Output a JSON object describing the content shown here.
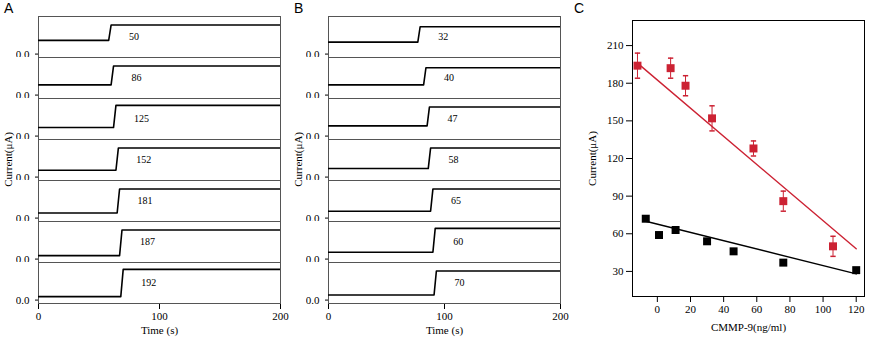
{
  "chart_data": [
    {
      "type": "line",
      "title": "A",
      "xlabel": "Time (s)",
      "ylabel": "Current(μA)",
      "xlim": [
        0,
        200
      ],
      "xticks": [
        0,
        100,
        200
      ],
      "ylim": [
        -0.1,
        1.1
      ],
      "yticks": [
        0
      ],
      "series": [
        {
          "name": "50",
          "color": "#000000",
          "x": [
            0,
            58,
            60,
            200
          ],
          "values": [
            0.4,
            0.4,
            0.85,
            0.85
          ]
        },
        {
          "name": "86",
          "color": "#000000",
          "x": [
            0,
            60,
            62,
            200
          ],
          "values": [
            0.3,
            0.3,
            0.85,
            0.85
          ]
        },
        {
          "name": "125",
          "color": "#000000",
          "x": [
            0,
            62,
            64,
            200
          ],
          "values": [
            0.25,
            0.25,
            0.9,
            0.9
          ]
        },
        {
          "name": "152",
          "color": "#000000",
          "x": [
            0,
            64,
            66,
            200
          ],
          "values": [
            0.2,
            0.2,
            0.85,
            0.85
          ]
        },
        {
          "name": "181",
          "color": "#000000",
          "x": [
            0,
            65,
            67,
            200
          ],
          "values": [
            0.15,
            0.15,
            0.85,
            0.85
          ]
        },
        {
          "name": "187",
          "color": "#000000",
          "x": [
            0,
            67,
            69,
            200
          ],
          "values": [
            0.1,
            0.1,
            0.85,
            0.85
          ]
        },
        {
          "name": "192",
          "color": "#000000",
          "x": [
            0,
            68,
            70,
            200
          ],
          "values": [
            0.1,
            0.1,
            0.9,
            0.9
          ]
        }
      ]
    },
    {
      "type": "line",
      "title": "B",
      "xlabel": "Time (s)",
      "ylabel": "Current(μA)",
      "xlim": [
        0,
        200
      ],
      "xticks": [
        0,
        100,
        200
      ],
      "ylim": [
        -0.1,
        1.1
      ],
      "yticks": [
        0
      ],
      "series": [
        {
          "name": "32",
          "color": "#000000",
          "x": [
            0,
            77,
            79,
            200
          ],
          "values": [
            0.35,
            0.35,
            0.8,
            0.8
          ]
        },
        {
          "name": "40",
          "color": "#000000",
          "x": [
            0,
            82,
            84,
            200
          ],
          "values": [
            0.3,
            0.3,
            0.8,
            0.8
          ]
        },
        {
          "name": "47",
          "color": "#000000",
          "x": [
            0,
            85,
            87,
            200
          ],
          "values": [
            0.3,
            0.3,
            0.85,
            0.85
          ]
        },
        {
          "name": "58",
          "color": "#000000",
          "x": [
            0,
            86,
            88,
            200
          ],
          "values": [
            0.25,
            0.25,
            0.85,
            0.85
          ]
        },
        {
          "name": "65",
          "color": "#000000",
          "x": [
            0,
            88,
            90,
            200
          ],
          "values": [
            0.2,
            0.2,
            0.85,
            0.85
          ]
        },
        {
          "name": "60",
          "color": "#000000",
          "x": [
            0,
            90,
            92,
            200
          ],
          "values": [
            0.2,
            0.2,
            0.9,
            0.9
          ]
        },
        {
          "name": "70",
          "color": "#000000",
          "x": [
            0,
            91,
            93,
            200
          ],
          "values": [
            0.15,
            0.15,
            0.85,
            0.85
          ]
        }
      ]
    },
    {
      "type": "scatter",
      "title": "C",
      "xlabel": "CMMP-9(ng/ml)",
      "ylabel": "Current(μA)",
      "xlim": [
        -15,
        125
      ],
      "xticks": [
        0,
        20,
        40,
        60,
        80,
        100,
        120
      ],
      "ylim": [
        10,
        230
      ],
      "yticks": [
        30,
        60,
        90,
        120,
        150,
        180,
        210
      ],
      "series": [
        {
          "type": "scatter",
          "color": "#cc2233",
          "marker": "square",
          "x": [
            -12,
            8,
            17,
            33,
            58,
            76,
            106
          ],
          "values": [
            194,
            192,
            178,
            152,
            128,
            86,
            50
          ],
          "error": [
            10,
            8,
            8,
            10,
            6,
            8,
            8
          ]
        },
        {
          "type": "line",
          "color": "#cc2233",
          "x": [
            -12,
            120
          ],
          "values": [
            196,
            48
          ]
        },
        {
          "type": "scatter",
          "color": "#000000",
          "marker": "square",
          "x": [
            -7,
            1,
            11,
            30,
            46,
            76,
            120
          ],
          "values": [
            72,
            59,
            63,
            54,
            46,
            37,
            31
          ]
        },
        {
          "type": "line",
          "color": "#000000",
          "x": [
            -7,
            120
          ],
          "values": [
            70,
            28
          ]
        }
      ]
    }
  ]
}
